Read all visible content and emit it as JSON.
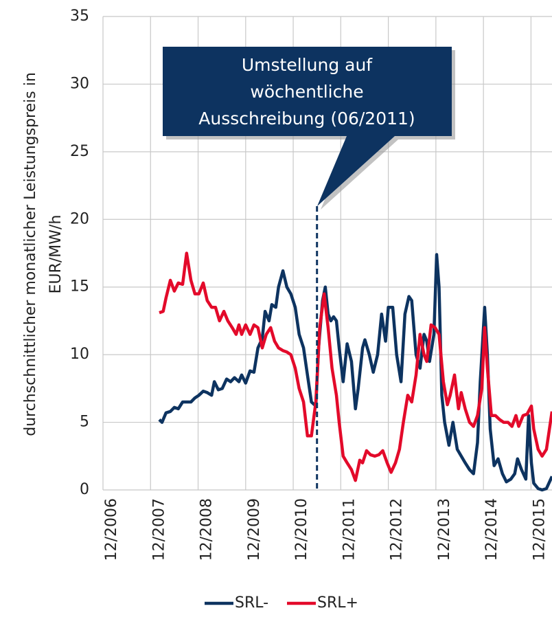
{
  "chart_data": {
    "type": "line",
    "y_label": [
      "durchschnittlicher monatlicher Leistungspreis in",
      "EUR/MW/h"
    ],
    "xlim": [
      0,
      113.3
    ],
    "xticks": [
      {
        "value": 0,
        "label": "12/2006"
      },
      {
        "value": 12,
        "label": "12/2007"
      },
      {
        "value": 24,
        "label": "12/2008"
      },
      {
        "value": 36,
        "label": "12/2009"
      },
      {
        "value": 48,
        "label": "12/2010"
      },
      {
        "value": 60,
        "label": "12/2011"
      },
      {
        "value": 72,
        "label": "12/2012"
      },
      {
        "value": 84,
        "label": "12/2013"
      },
      {
        "value": 96,
        "label": "12/2014"
      },
      {
        "value": 108,
        "label": "12/2015"
      }
    ],
    "ylim": [
      0,
      35
    ],
    "yticks": [
      0,
      5,
      10,
      15,
      20,
      25,
      30,
      35
    ],
    "grid": true,
    "annotation": {
      "text": [
        "Umstellung auf",
        "wöchentliche",
        "Ausschreibung (06/2011)"
      ],
      "x": 54,
      "color": "#0d3360"
    },
    "series": [
      {
        "name": "SRL-",
        "color": "#0d3360",
        "x": [
          14.2,
          14.9,
          15.9,
          17.0,
          18.0,
          19.0,
          20.1,
          21.1,
          22.2,
          23.2,
          24.2,
          25.3,
          26.3,
          27.4,
          28.1,
          29.1,
          30.1,
          31.2,
          32.2,
          33.2,
          34.3,
          35.0,
          36.0,
          37.1,
          38.1,
          39.1,
          40.2,
          40.9,
          41.9,
          42.6,
          43.6,
          44.3,
          45.4,
          46.4,
          47.4,
          48.5,
          49.5,
          50.6,
          51.6,
          52.6,
          53.7,
          54.4,
          55.4,
          56.1,
          56.8,
          57.5,
          58.2,
          58.9,
          59.6,
          60.6,
          61.6,
          62.7,
          63.7,
          64.4,
          65.5,
          66.1,
          67.2,
          68.2,
          69.3,
          70.3,
          71.3,
          72.0,
          73.1,
          74.1,
          75.2,
          76.2,
          77.2,
          77.9,
          79.0,
          80.0,
          81.0,
          81.7,
          82.4,
          83.5,
          84.2,
          84.8,
          85.5,
          86.2,
          87.3,
          88.3,
          89.4,
          90.4,
          91.4,
          92.5,
          93.5,
          94.5,
          95.2,
          96.3,
          97.0,
          97.7,
          98.7,
          99.7,
          100.8,
          101.8,
          102.9,
          103.9,
          104.6,
          105.6,
          106.7,
          107.4,
          108.1,
          108.7,
          109.8,
          110.8,
          111.9,
          113.3
        ],
        "values": [
          5.2,
          5.0,
          5.7,
          5.8,
          6.1,
          6.0,
          6.5,
          6.5,
          6.5,
          6.8,
          7.0,
          7.3,
          7.2,
          7.0,
          8.0,
          7.4,
          7.5,
          8.2,
          8.0,
          8.3,
          8.0,
          8.5,
          7.9,
          8.8,
          8.7,
          10.5,
          11.2,
          13.2,
          12.5,
          13.7,
          13.5,
          15.0,
          16.2,
          15.0,
          14.5,
          13.5,
          11.5,
          10.5,
          8.5,
          6.5,
          6.2,
          10.5,
          14.0,
          15.0,
          13.0,
          12.5,
          12.8,
          12.5,
          10.5,
          8.0,
          10.8,
          9.5,
          6.0,
          7.5,
          10.5,
          11.1,
          10.0,
          8.7,
          10.0,
          13.0,
          11.0,
          13.5,
          13.5,
          10.0,
          8.0,
          13.0,
          14.3,
          14.0,
          10.0,
          9.0,
          11.5,
          11.0,
          9.5,
          11.5,
          17.4,
          15.0,
          7.0,
          5.0,
          3.3,
          5.0,
          3.0,
          2.5,
          2.0,
          1.5,
          1.2,
          3.5,
          8.0,
          13.5,
          10.0,
          4.5,
          1.8,
          2.3,
          1.2,
          0.6,
          0.8,
          1.2,
          2.3,
          1.5,
          0.8,
          5.5,
          2.0,
          0.5,
          0.1,
          0.0,
          0.1,
          1.0
        ]
      },
      {
        "name": "SRL+",
        "color": "#e30a2a",
        "x": [
          14.2,
          15.2,
          15.9,
          17.0,
          18.0,
          19.0,
          20.1,
          21.1,
          22.2,
          23.2,
          24.2,
          25.3,
          26.3,
          27.4,
          28.4,
          29.4,
          30.5,
          31.5,
          32.6,
          33.6,
          34.3,
          35.0,
          36.0,
          37.1,
          38.1,
          39.1,
          40.2,
          41.2,
          42.3,
          43.3,
          44.3,
          45.4,
          46.4,
          47.4,
          48.5,
          49.5,
          50.6,
          51.6,
          52.6,
          53.7,
          54.7,
          55.8,
          56.8,
          57.8,
          58.9,
          59.6,
          60.6,
          61.6,
          62.7,
          63.7,
          64.8,
          65.5,
          66.5,
          67.5,
          68.6,
          69.6,
          70.6,
          71.7,
          72.7,
          73.8,
          74.8,
          75.8,
          76.9,
          77.9,
          79.0,
          80.0,
          81.0,
          81.7,
          82.8,
          83.8,
          84.8,
          85.9,
          86.9,
          87.6,
          88.7,
          89.7,
          90.4,
          91.4,
          92.5,
          93.5,
          94.5,
          95.6,
          96.3,
          97.0,
          98.0,
          99.0,
          100.1,
          101.1,
          102.2,
          103.2,
          104.2,
          104.9,
          106.0,
          107.0,
          108.1,
          108.7,
          109.8,
          110.8,
          111.9,
          113.3
        ],
        "values": [
          13.1,
          13.2,
          14.2,
          15.5,
          14.7,
          15.3,
          15.2,
          17.5,
          15.5,
          14.5,
          14.5,
          15.3,
          14.0,
          13.5,
          13.5,
          12.5,
          13.2,
          12.5,
          12.0,
          11.5,
          12.2,
          11.5,
          12.2,
          11.5,
          12.2,
          12.0,
          10.5,
          11.5,
          12.0,
          11.0,
          10.5,
          10.3,
          10.2,
          10.0,
          9.0,
          7.5,
          6.5,
          4.0,
          4.0,
          6.5,
          12.0,
          14.5,
          12.0,
          9.0,
          7.0,
          5.0,
          2.5,
          2.0,
          1.5,
          0.7,
          2.2,
          2.0,
          2.9,
          2.6,
          2.5,
          2.6,
          2.9,
          2.0,
          1.3,
          2.0,
          3.0,
          5.0,
          7.0,
          6.5,
          8.5,
          11.5,
          10.0,
          9.5,
          12.2,
          12.0,
          11.5,
          8.0,
          6.3,
          7.0,
          8.5,
          6.0,
          7.2,
          6.0,
          5.0,
          4.7,
          5.5,
          7.5,
          12.0,
          9.0,
          5.5,
          5.5,
          5.2,
          5.0,
          5.0,
          4.7,
          5.5,
          4.7,
          5.5,
          5.6,
          6.2,
          4.5,
          3.0,
          2.5,
          3.0,
          5.8
        ]
      }
    ]
  }
}
